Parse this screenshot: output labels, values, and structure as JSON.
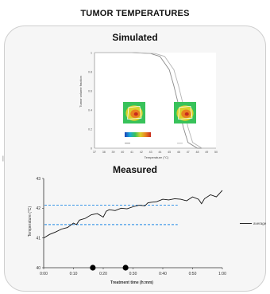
{
  "page": {
    "title": "TUMOR TEMPERATURES",
    "side_mark": "|"
  },
  "chart_data": [
    {
      "name": "Simulated",
      "type": "line",
      "title": "Simulated",
      "xlabel": "Temperature (°C)",
      "ylabel": "Tumor volume fraction",
      "xlim": [
        37,
        50
      ],
      "ylim": [
        0,
        1
      ],
      "x_ticks": [
        "37",
        "38",
        "39",
        "40",
        "41",
        "42",
        "43",
        "44",
        "45",
        "46",
        "47",
        "48",
        "49",
        "50"
      ],
      "y_ticks": [
        "0",
        "0.2",
        "0.4",
        "0.6",
        "0.8",
        "1"
      ],
      "series": [
        {
          "name": "Before HTP @30 min",
          "x": [
            37,
            41,
            43,
            44,
            45,
            45.5,
            46,
            46.5,
            47,
            48,
            50
          ],
          "y": [
            1,
            1,
            0.99,
            0.96,
            0.82,
            0.65,
            0.45,
            0.22,
            0.06,
            0.0,
            0
          ]
        },
        {
          "name": "After HTP @30 min",
          "x": [
            37,
            41,
            43.5,
            44.5,
            45.5,
            46,
            46.5,
            47,
            47.5,
            48.5,
            50
          ],
          "y": [
            1,
            1,
            0.99,
            0.96,
            0.82,
            0.65,
            0.45,
            0.22,
            0.06,
            0.0,
            0
          ]
        }
      ],
      "inset_colorbar_labels": [
        "37 °C",
        "44 °C"
      ],
      "inset_colors": [
        "#1a3fb8",
        "#19a8d8",
        "#38c25a",
        "#d9d12c",
        "#e8821f",
        "#c92a1e"
      ]
    },
    {
      "name": "Measured",
      "type": "line",
      "title": "Measured",
      "xlabel": "Treatment time (h:mm)",
      "ylabel": "Temperature (°C)",
      "xlim": [
        0,
        60
      ],
      "ylim": [
        40,
        43
      ],
      "x_ticks": [
        "0:00",
        "0:10",
        "0:20",
        "0:30",
        "0:40",
        "0:50",
        "1:00"
      ],
      "y_ticks": [
        "40",
        "41",
        "42",
        "43"
      ],
      "series": [
        {
          "name": "average",
          "color": "#111111",
          "x": [
            0,
            2,
            4,
            6,
            8,
            10,
            11,
            12,
            14,
            16,
            18,
            20,
            21,
            22,
            24,
            26,
            28,
            30,
            32,
            34,
            35,
            36,
            38,
            40,
            42,
            44,
            46,
            48,
            50,
            52,
            53,
            54,
            56,
            58,
            60
          ],
          "y": [
            41.0,
            41.12,
            41.2,
            41.3,
            41.35,
            41.5,
            41.45,
            41.6,
            41.66,
            41.78,
            41.82,
            41.7,
            41.9,
            41.95,
            41.92,
            42.0,
            41.98,
            42.05,
            42.1,
            42.08,
            42.18,
            42.2,
            42.22,
            42.3,
            42.28,
            42.32,
            42.3,
            42.25,
            42.38,
            42.3,
            42.15,
            42.32,
            42.45,
            42.38,
            42.6
          ]
        }
      ],
      "reference_lines": [
        {
          "y": 42.1,
          "color": "#1e88e5",
          "style": "dashed"
        },
        {
          "y": 41.45,
          "color": "#1e88e5",
          "style": "dashed"
        }
      ],
      "markers_x": [
        16.5,
        27.5
      ],
      "legend": {
        "position": "right"
      }
    }
  ]
}
